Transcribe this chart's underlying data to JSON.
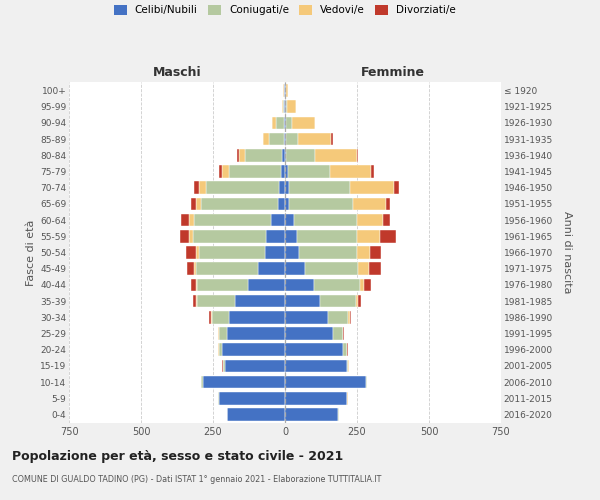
{
  "age_groups": [
    "0-4",
    "5-9",
    "10-14",
    "15-19",
    "20-24",
    "25-29",
    "30-34",
    "35-39",
    "40-44",
    "45-49",
    "50-54",
    "55-59",
    "60-64",
    "65-69",
    "70-74",
    "75-79",
    "80-84",
    "85-89",
    "90-94",
    "95-99",
    "100+"
  ],
  "birth_years": [
    "2016-2020",
    "2011-2015",
    "2006-2010",
    "2001-2005",
    "1996-2000",
    "1991-1995",
    "1986-1990",
    "1981-1985",
    "1976-1980",
    "1971-1975",
    "1966-1970",
    "1961-1965",
    "1956-1960",
    "1951-1955",
    "1946-1950",
    "1941-1945",
    "1936-1940",
    "1931-1935",
    "1926-1930",
    "1921-1925",
    "≤ 1920"
  ],
  "males": {
    "celibi": [
      200,
      230,
      285,
      210,
      220,
      200,
      195,
      175,
      130,
      95,
      70,
      65,
      50,
      25,
      20,
      15,
      10,
      5,
      5,
      2,
      2
    ],
    "coniugati": [
      2,
      2,
      5,
      5,
      10,
      30,
      60,
      130,
      175,
      215,
      230,
      255,
      265,
      265,
      255,
      180,
      130,
      50,
      25,
      5,
      2
    ],
    "vedovi": [
      1,
      1,
      2,
      2,
      2,
      2,
      3,
      3,
      5,
      5,
      10,
      15,
      20,
      20,
      25,
      25,
      20,
      20,
      15,
      5,
      2
    ],
    "divorziati": [
      0,
      0,
      0,
      1,
      2,
      2,
      5,
      10,
      15,
      25,
      35,
      30,
      25,
      15,
      15,
      10,
      5,
      0,
      0,
      0,
      0
    ]
  },
  "females": {
    "nubili": [
      185,
      215,
      280,
      215,
      200,
      165,
      150,
      120,
      100,
      70,
      50,
      40,
      30,
      15,
      15,
      10,
      5,
      5,
      5,
      2,
      2
    ],
    "coniugate": [
      2,
      2,
      5,
      5,
      15,
      35,
      70,
      125,
      160,
      185,
      200,
      210,
      220,
      220,
      210,
      145,
      100,
      40,
      20,
      5,
      2
    ],
    "vedove": [
      1,
      1,
      1,
      2,
      2,
      3,
      5,
      10,
      15,
      35,
      45,
      80,
      90,
      115,
      155,
      145,
      145,
      115,
      80,
      30,
      5
    ],
    "divorziate": [
      0,
      0,
      0,
      1,
      2,
      3,
      5,
      10,
      25,
      45,
      40,
      55,
      25,
      15,
      15,
      10,
      5,
      5,
      0,
      0,
      0
    ]
  },
  "colors": {
    "celibi": "#4472c4",
    "coniugati": "#b5c9a0",
    "vedovi": "#f5c97a",
    "divorziati": "#c0392b"
  },
  "legend_labels": [
    "Celibi/Nubili",
    "Coniugati/e",
    "Vedovi/e",
    "Divorziati/e"
  ],
  "title": "Popolazione per età, sesso e stato civile - 2021",
  "subtitle": "COMUNE DI GUALDO TADINO (PG) - Dati ISTAT 1° gennaio 2021 - Elaborazione TUTTITALIA.IT",
  "label_maschi": "Maschi",
  "label_femmine": "Femmine",
  "ylabel_left": "Fasce di età",
  "ylabel_right": "Anni di nascita",
  "xlim": 750,
  "bg_color": "#f0f0f0",
  "plot_bg": "#ffffff"
}
